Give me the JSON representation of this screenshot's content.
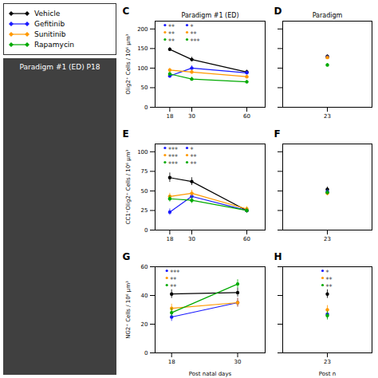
{
  "chart_data": [
    {
      "type": "line",
      "label": "C",
      "title": "Paradigm #1 (ED)",
      "ylabel": "Olig2⁺ Cells / 10⁶ μm³",
      "x": [
        18,
        30,
        60
      ],
      "xlim": [
        10,
        70
      ],
      "xticks": [
        18,
        30,
        60
      ],
      "ylim": [
        0,
        220
      ],
      "yticks": [
        0,
        50,
        100,
        150,
        200
      ],
      "grid": false,
      "legend": "left",
      "marker": "circle",
      "series": [
        {
          "name": "Vehicle",
          "color": "#000000",
          "values": [
            148,
            122,
            90
          ],
          "errors": [
            5,
            6,
            5
          ]
        },
        {
          "name": "Gefitinib",
          "color": "#1a1aff",
          "values": [
            80,
            100,
            88
          ],
          "errors": [
            5,
            6,
            4
          ]
        },
        {
          "name": "Sunitinib",
          "color": "#ff9900",
          "values": [
            95,
            90,
            78
          ],
          "errors": [
            5,
            5,
            4
          ]
        },
        {
          "name": "Rapamycin",
          "color": "#00aa00",
          "values": [
            85,
            72,
            65
          ],
          "errors": [
            5,
            5,
            4
          ]
        }
      ],
      "annotations": [
        {
          "x": 18,
          "color": "#1a1aff",
          "text": "**"
        },
        {
          "x": 18,
          "color": "#ff9900",
          "text": "**"
        },
        {
          "x": 18,
          "color": "#00aa00",
          "text": "**"
        },
        {
          "x": 30,
          "color": "#1a1aff",
          "text": "*"
        },
        {
          "x": 30,
          "color": "#ff9900",
          "text": "**"
        },
        {
          "x": 30,
          "color": "#00aa00",
          "text": "***"
        },
        {
          "text": "Paradigm #1 (ED) P18"
        }
      ]
    },
    {
      "type": "line",
      "label": "D",
      "title": "Paradigm",
      "tick_labels": "x",
      "x": [
        23
      ],
      "xlim": [
        20,
        26
      ],
      "xticks": [
        23
      ],
      "ylim": [
        0,
        220
      ],
      "yticks": [
        0,
        50,
        100,
        150,
        200
      ],
      "grid": false,
      "marker": "circle",
      "series": [
        {
          "name": "Vehicle",
          "color": "#000000",
          "values": [
            130
          ],
          "errors": [
            4
          ]
        },
        {
          "name": "Gefitinib",
          "color": "#1a1aff",
          "values": [
            128
          ],
          "errors": [
            4
          ]
        },
        {
          "name": "Sunitinib",
          "color": "#ff9900",
          "values": [
            127
          ],
          "errors": [
            4
          ]
        },
        {
          "name": "Rapamycin",
          "color": "#00aa00",
          "values": [
            108
          ],
          "errors": [
            4
          ]
        }
      ]
    },
    {
      "type": "line",
      "label": "E",
      "ylabel": "CC1⁺Olig2⁺ Cells / 10⁶ μm³",
      "x": [
        18,
        30,
        60
      ],
      "xlim": [
        10,
        70
      ],
      "xticks": [
        18,
        30,
        60
      ],
      "ylim": [
        0,
        110
      ],
      "yticks": [
        0,
        25,
        50,
        75,
        100
      ],
      "grid": false,
      "marker": "circle",
      "series": [
        {
          "name": "Vehicle",
          "color": "#000000",
          "values": [
            67,
            62,
            25
          ],
          "errors": [
            6,
            5,
            3
          ]
        },
        {
          "name": "Gefitinib",
          "color": "#1a1aff",
          "values": [
            23,
            43,
            25
          ],
          "errors": [
            4,
            4,
            3
          ]
        },
        {
          "name": "Sunitinib",
          "color": "#ff9900",
          "values": [
            43,
            47,
            27
          ],
          "errors": [
            4,
            4,
            3
          ]
        },
        {
          "name": "Rapamycin",
          "color": "#00aa00",
          "values": [
            40,
            38,
            25
          ],
          "errors": [
            4,
            4,
            3
          ]
        }
      ],
      "annotations": [
        {
          "x": 18,
          "color": "#1a1aff",
          "text": "***"
        },
        {
          "x": 18,
          "color": "#ff9900",
          "text": "***"
        },
        {
          "x": 18,
          "color": "#00aa00",
          "text": "***"
        },
        {
          "x": 30,
          "color": "#1a1aff",
          "text": "*"
        },
        {
          "x": 30,
          "color": "#ff9900",
          "text": "**"
        },
        {
          "x": 30,
          "color": "#00aa00",
          "text": "**"
        }
      ]
    },
    {
      "type": "line",
      "label": "F",
      "tick_labels": "x",
      "x": [
        23
      ],
      "xlim": [
        20,
        26
      ],
      "xticks": [
        23
      ],
      "ylim": [
        0,
        110
      ],
      "yticks": [
        0,
        25,
        50,
        75,
        100
      ],
      "grid": false,
      "marker": "circle",
      "series": [
        {
          "name": "Vehicle",
          "color": "#000000",
          "values": [
            52
          ],
          "errors": [
            3
          ]
        },
        {
          "name": "Gefitinib",
          "color": "#1a1aff",
          "values": [
            49
          ],
          "errors": [
            3
          ]
        },
        {
          "name": "Sunitinib",
          "color": "#ff9900",
          "values": [
            47
          ],
          "errors": [
            3
          ]
        },
        {
          "name": "Rapamycin",
          "color": "#00aa00",
          "values": [
            48
          ],
          "errors": [
            3
          ]
        }
      ]
    },
    {
      "type": "line",
      "label": "G",
      "ylabel": "NG2⁺ Cells / 10⁶ μm³",
      "xlabel": "Post natal days",
      "x": [
        18,
        30
      ],
      "xlim": [
        15,
        35
      ],
      "xticks": [
        18,
        30
      ],
      "ylim": [
        0,
        60
      ],
      "yticks": [
        0,
        20,
        40,
        60
      ],
      "grid": false,
      "marker": "circle",
      "series": [
        {
          "name": "Vehicle",
          "color": "#000000",
          "values": [
            41,
            42
          ],
          "errors": [
            3,
            3
          ]
        },
        {
          "name": "Gefitinib",
          "color": "#1a1aff",
          "values": [
            25,
            35
          ],
          "errors": [
            3,
            3
          ]
        },
        {
          "name": "Sunitinib",
          "color": "#ff9900",
          "values": [
            31,
            35
          ],
          "errors": [
            3,
            3
          ]
        },
        {
          "name": "Rapamycin",
          "color": "#00aa00",
          "values": [
            28,
            48
          ],
          "errors": [
            3,
            3
          ]
        }
      ],
      "annotations": [
        {
          "x": 18,
          "color": "#1a1aff",
          "text": "***"
        },
        {
          "x": 18,
          "color": "#ff9900",
          "text": "**"
        },
        {
          "x": 18,
          "color": "#00aa00",
          "text": "**"
        }
      ]
    },
    {
      "type": "line",
      "label": "H",
      "xlabel": "Post n",
      "tick_labels": "x",
      "x": [
        23
      ],
      "xlim": [
        20,
        26
      ],
      "xticks": [
        23
      ],
      "ylim": [
        0,
        60
      ],
      "yticks": [
        0,
        20,
        40,
        60
      ],
      "grid": false,
      "marker": "circle",
      "series": [
        {
          "name": "Vehicle",
          "color": "#000000",
          "values": [
            41
          ],
          "errors": [
            3
          ]
        },
        {
          "name": "Gefitinib",
          "color": "#1a1aff",
          "values": [
            27
          ],
          "errors": [
            3
          ]
        },
        {
          "name": "Sunitinib",
          "color": "#ff9900",
          "values": [
            30
          ],
          "errors": [
            3
          ]
        },
        {
          "name": "Rapamycin",
          "color": "#00aa00",
          "values": [
            26
          ],
          "errors": [
            3
          ]
        }
      ],
      "annotations": [
        {
          "x": 23,
          "color": "#1a1aff",
          "text": "*"
        },
        {
          "x": 23,
          "color": "#ff9900",
          "text": "**"
        },
        {
          "x": 23,
          "color": "#00aa00",
          "text": "**"
        }
      ]
    }
  ]
}
